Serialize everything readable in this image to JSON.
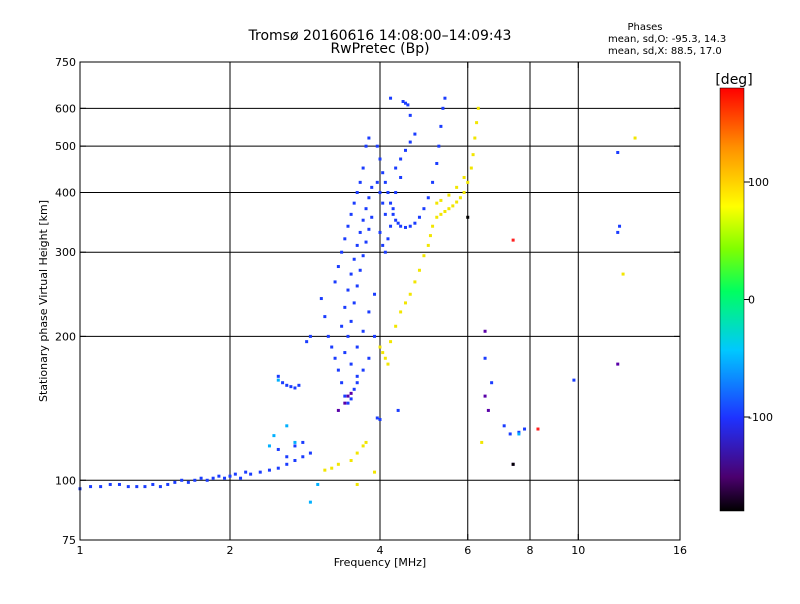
{
  "chart_data": {
    "type": "scatter",
    "title": "Tromsø 20160616 14:08:00–14:09:43",
    "subtitle": "RwPretec (Bp)",
    "stats": {
      "header": "Phases",
      "line_o": "mean, sd,O:  -95.3, 14.3",
      "line_x": "mean, sd,X:  88.5, 17.0"
    },
    "xlabel": "Frequency [MHz]",
    "ylabel": "Stationary phase Virtual Height [km]",
    "x_scale": "log",
    "y_scale": "log",
    "xlim": [
      1,
      16
    ],
    "ylim": [
      75,
      750
    ],
    "x_ticks": [
      {
        "value": 1,
        "label": "1"
      },
      {
        "value": 2,
        "label": "2"
      },
      {
        "value": 4,
        "label": "4"
      },
      {
        "value": 6,
        "label": "6"
      },
      {
        "value": 8,
        "label": "8"
      },
      {
        "value": 10,
        "label": "10"
      },
      {
        "value": 16,
        "label": "16"
      }
    ],
    "y_ticks": [
      {
        "value": 75,
        "label": "75"
      },
      {
        "value": 100,
        "label": "100"
      },
      {
        "value": 200,
        "label": "200"
      },
      {
        "value": 300,
        "label": "300"
      },
      {
        "value": 400,
        "label": "400"
      },
      {
        "value": 500,
        "label": "500"
      },
      {
        "value": 600,
        "label": "600"
      },
      {
        "value": 750,
        "label": "750"
      }
    ],
    "grid_x": [
      2,
      4,
      6,
      8,
      10
    ],
    "grid_y": [
      100,
      200,
      300,
      400,
      500,
      600
    ],
    "colorbar": {
      "label": "[deg]",
      "range": [
        -180,
        180
      ],
      "ticks": [
        {
          "value": 100,
          "label": "100"
        },
        {
          "value": 0,
          "label": "0"
        },
        {
          "value": -100,
          "label": "-100"
        }
      ]
    },
    "point_size_note": "",
    "series": [
      {
        "mode": "O",
        "color": "#1a3cff",
        "points": [
          [
            1.0,
            96
          ],
          [
            1.05,
            97
          ],
          [
            1.1,
            97
          ],
          [
            1.15,
            98
          ],
          [
            1.2,
            98
          ],
          [
            1.25,
            97
          ],
          [
            1.3,
            97
          ],
          [
            1.35,
            97
          ],
          [
            1.4,
            98
          ],
          [
            1.45,
            97
          ],
          [
            1.5,
            98
          ],
          [
            1.55,
            99
          ],
          [
            1.6,
            100
          ],
          [
            1.65,
            99
          ],
          [
            1.7,
            100
          ],
          [
            1.75,
            101
          ],
          [
            1.8,
            100
          ],
          [
            1.85,
            101
          ],
          [
            1.9,
            102
          ],
          [
            1.95,
            101
          ],
          [
            2.0,
            102
          ],
          [
            2.05,
            103
          ],
          [
            2.1,
            101
          ],
          [
            2.15,
            104
          ],
          [
            2.2,
            103
          ],
          [
            2.3,
            104
          ],
          [
            2.4,
            105
          ],
          [
            2.5,
            106
          ],
          [
            2.6,
            108
          ],
          [
            2.7,
            110
          ],
          [
            2.8,
            112
          ],
          [
            2.9,
            114
          ],
          [
            2.5,
            116
          ],
          [
            2.6,
            112
          ],
          [
            2.7,
            118
          ],
          [
            2.8,
            120
          ],
          [
            2.5,
            165
          ],
          [
            2.55,
            160
          ],
          [
            2.6,
            158
          ],
          [
            2.65,
            157
          ],
          [
            2.7,
            156
          ],
          [
            2.75,
            158
          ],
          [
            2.85,
            195
          ],
          [
            2.9,
            200
          ],
          [
            3.05,
            240
          ],
          [
            3.1,
            220
          ],
          [
            3.15,
            200
          ],
          [
            3.2,
            190
          ],
          [
            3.25,
            180
          ],
          [
            3.3,
            170
          ],
          [
            3.35,
            160
          ],
          [
            3.4,
            150
          ],
          [
            3.45,
            145
          ],
          [
            3.5,
            148
          ],
          [
            3.55,
            155
          ],
          [
            3.6,
            165
          ],
          [
            3.25,
            260
          ],
          [
            3.3,
            280
          ],
          [
            3.35,
            300
          ],
          [
            3.4,
            320
          ],
          [
            3.45,
            340
          ],
          [
            3.5,
            360
          ],
          [
            3.55,
            380
          ],
          [
            3.6,
            400
          ],
          [
            3.65,
            420
          ],
          [
            3.7,
            450
          ],
          [
            3.75,
            500
          ],
          [
            3.8,
            520
          ],
          [
            3.35,
            210
          ],
          [
            3.4,
            230
          ],
          [
            3.45,
            250
          ],
          [
            3.5,
            270
          ],
          [
            3.55,
            290
          ],
          [
            3.6,
            310
          ],
          [
            3.65,
            330
          ],
          [
            3.7,
            350
          ],
          [
            3.75,
            370
          ],
          [
            3.8,
            390
          ],
          [
            3.85,
            410
          ],
          [
            3.4,
            185
          ],
          [
            3.45,
            200
          ],
          [
            3.5,
            215
          ],
          [
            3.55,
            235
          ],
          [
            3.6,
            255
          ],
          [
            3.65,
            275
          ],
          [
            3.7,
            295
          ],
          [
            3.75,
            315
          ],
          [
            3.8,
            335
          ],
          [
            3.85,
            355
          ],
          [
            3.5,
            175
          ],
          [
            3.6,
            190
          ],
          [
            3.7,
            205
          ],
          [
            3.8,
            225
          ],
          [
            3.9,
            245
          ],
          [
            3.6,
            160
          ],
          [
            3.7,
            170
          ],
          [
            3.8,
            180
          ],
          [
            3.9,
            200
          ],
          [
            3.95,
            500
          ],
          [
            4.0,
            470
          ],
          [
            4.05,
            440
          ],
          [
            4.1,
            420
          ],
          [
            4.15,
            400
          ],
          [
            4.2,
            380
          ],
          [
            4.25,
            360
          ],
          [
            4.3,
            350
          ],
          [
            4.35,
            345
          ],
          [
            4.4,
            340
          ],
          [
            4.5,
            338
          ],
          [
            4.6,
            340
          ],
          [
            4.7,
            345
          ],
          [
            4.8,
            355
          ],
          [
            4.9,
            370
          ],
          [
            5.0,
            390
          ],
          [
            5.1,
            420
          ],
          [
            5.2,
            460
          ],
          [
            5.25,
            500
          ],
          [
            5.3,
            550
          ],
          [
            5.35,
            600
          ],
          [
            5.4,
            630
          ],
          [
            3.95,
            420
          ],
          [
            4.0,
            400
          ],
          [
            4.05,
            380
          ],
          [
            4.1,
            360
          ],
          [
            4.0,
            330
          ],
          [
            4.05,
            310
          ],
          [
            4.1,
            300
          ],
          [
            4.15,
            320
          ],
          [
            4.2,
            340
          ],
          [
            4.25,
            370
          ],
          [
            4.3,
            400
          ],
          [
            4.4,
            430
          ],
          [
            4.45,
            620
          ],
          [
            4.5,
            615
          ],
          [
            4.55,
            610
          ],
          [
            4.2,
            630
          ],
          [
            4.6,
            580
          ],
          [
            4.3,
            450
          ],
          [
            4.4,
            470
          ],
          [
            4.5,
            490
          ],
          [
            4.6,
            510
          ],
          [
            4.7,
            530
          ],
          [
            3.95,
            135
          ],
          [
            4.0,
            134
          ],
          [
            4.35,
            140
          ],
          [
            6.5,
            180
          ],
          [
            6.7,
            160
          ],
          [
            7.1,
            130
          ],
          [
            7.3,
            125
          ],
          [
            7.6,
            126
          ],
          [
            7.8,
            128
          ],
          [
            9.8,
            162
          ],
          [
            12.0,
            485
          ],
          [
            12.0,
            330
          ],
          [
            12.1,
            340
          ]
        ]
      },
      {
        "mode": "X",
        "color": "#f2e600",
        "points": [
          [
            3.1,
            105
          ],
          [
            3.2,
            106
          ],
          [
            3.3,
            108
          ],
          [
            3.5,
            110
          ],
          [
            3.6,
            114
          ],
          [
            3.7,
            118
          ],
          [
            3.75,
            120
          ],
          [
            3.9,
            104
          ],
          [
            3.6,
            98
          ],
          [
            4.0,
            190
          ],
          [
            4.05,
            185
          ],
          [
            4.1,
            180
          ],
          [
            4.15,
            175
          ],
          [
            4.2,
            195
          ],
          [
            4.3,
            210
          ],
          [
            4.4,
            225
          ],
          [
            4.5,
            235
          ],
          [
            4.6,
            245
          ],
          [
            4.7,
            260
          ],
          [
            4.8,
            275
          ],
          [
            4.9,
            295
          ],
          [
            5.0,
            310
          ],
          [
            5.05,
            325
          ],
          [
            5.1,
            340
          ],
          [
            5.2,
            355
          ],
          [
            5.3,
            360
          ],
          [
            5.4,
            365
          ],
          [
            5.5,
            370
          ],
          [
            5.6,
            375
          ],
          [
            5.7,
            382
          ],
          [
            5.8,
            390
          ],
          [
            5.9,
            400
          ],
          [
            6.0,
            420
          ],
          [
            6.1,
            450
          ],
          [
            6.15,
            480
          ],
          [
            6.2,
            520
          ],
          [
            6.25,
            560
          ],
          [
            6.3,
            600
          ],
          [
            5.2,
            380
          ],
          [
            5.3,
            385
          ],
          [
            5.5,
            395
          ],
          [
            5.7,
            410
          ],
          [
            5.9,
            430
          ],
          [
            6.4,
            120
          ],
          [
            13.0,
            520
          ],
          [
            12.3,
            270
          ]
        ]
      },
      {
        "mode": "misc",
        "color": "#00b0ff",
        "points": [
          [
            2.4,
            118
          ],
          [
            2.45,
            124
          ],
          [
            2.6,
            130
          ],
          [
            2.7,
            120
          ],
          [
            2.9,
            90
          ],
          [
            3.0,
            98
          ],
          [
            7.6,
            125
          ],
          [
            2.5,
            162
          ]
        ]
      },
      {
        "mode": "misc",
        "color": "#5a00a8",
        "points": [
          [
            3.3,
            140
          ],
          [
            3.4,
            145
          ],
          [
            3.45,
            150
          ],
          [
            3.5,
            152
          ],
          [
            6.5,
            150
          ],
          [
            6.6,
            140
          ],
          [
            7.4,
            108
          ],
          [
            12.0,
            175
          ],
          [
            6.5,
            205
          ]
        ]
      },
      {
        "mode": "misc",
        "color": "#ff2020",
        "points": [
          [
            7.4,
            318
          ],
          [
            8.3,
            128
          ]
        ]
      },
      {
        "mode": "misc",
        "color": "#000000",
        "points": [
          [
            6.0,
            355
          ],
          [
            7.4,
            108
          ]
        ]
      }
    ]
  }
}
